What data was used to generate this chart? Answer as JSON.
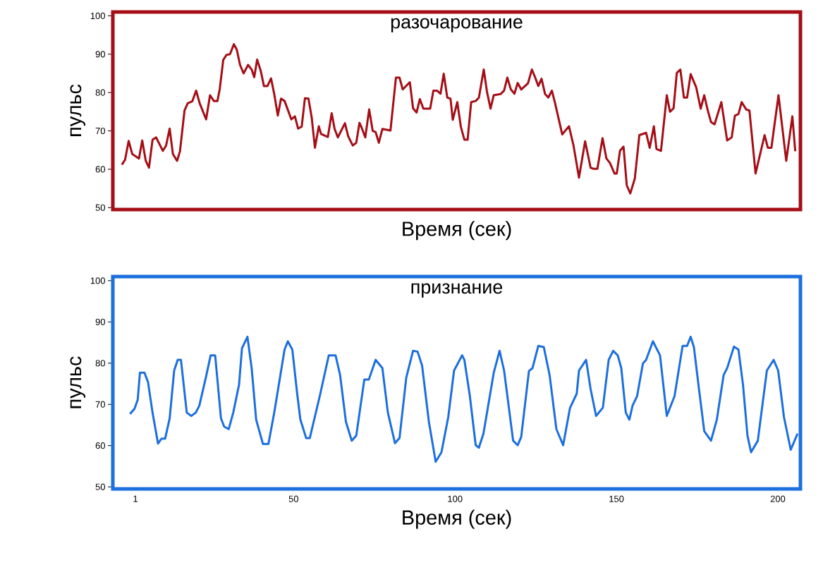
{
  "chart_data": [
    {
      "type": "line",
      "title": "разочарование",
      "xlabel": "Время (сек)",
      "ylabel": "пульс",
      "color": "#a50e16",
      "tick_labels": "y",
      "xlim": [
        -6,
        207
      ],
      "ylim": [
        49.5,
        101
      ],
      "yticks": [
        50,
        60,
        70,
        80,
        90,
        100
      ],
      "x": [
        -3.2,
        -2.2,
        -1.1,
        0,
        2.1,
        3.1,
        4.2,
        5.2,
        6.3,
        7.4,
        9.5,
        10.5,
        11.6,
        12.6,
        13.9,
        14.8,
        16.2,
        17.2,
        18.6,
        19.8,
        20.9,
        22.9,
        24.1,
        25.3,
        26.4,
        27.1,
        28.2,
        29.2,
        30.3,
        31.5,
        32.4,
        33.4,
        34.5,
        35.9,
        37.0,
        37.8,
        38.7,
        39.8,
        40.8,
        41.9,
        43.0,
        44.0,
        45.1,
        46.1,
        47.2,
        49.3,
        50.4,
        51.4,
        52.5,
        53.5,
        54.6,
        55.6,
        56.6,
        57.8,
        58.5,
        60.6,
        61.8,
        62.7,
        63.7,
        65.9,
        66.9,
        68.3,
        69.4,
        70.4,
        71.1,
        72.2,
        73.4,
        74.5,
        75.4,
        76.4,
        77.5,
        80.0,
        81.7,
        82.8,
        83.8,
        86.0,
        87.0,
        88.1,
        89.1,
        90.2,
        92.3,
        93.3,
        94.4,
        95.5,
        96.5,
        97.6,
        98.6,
        99.3,
        100.7,
        101.8,
        102.9,
        103.9,
        105.0,
        106.4,
        107.4,
        108.9,
        109.9,
        111.0,
        112.0,
        114.1,
        115.2,
        116.2,
        117.3,
        118.4,
        119.4,
        120.5,
        122.6,
        123.8,
        124.7,
        125.8,
        126.8,
        127.9,
        128.9,
        130.0,
        131.0,
        133.2,
        135.3,
        136.7,
        138.4,
        140.3,
        142.0,
        143.0,
        144.1,
        145.7,
        146.9,
        148.0,
        149.4,
        150.1,
        151.1,
        152.2,
        153.2,
        154.3,
        155.7,
        157.1,
        159.2,
        160.3,
        161.6,
        162.4,
        163.8,
        165.6,
        166.6,
        167.7,
        168.7,
        169.8,
        170.9,
        171.9,
        173.0,
        174.7,
        176.1,
        177.2,
        178.3,
        179.3,
        180.4,
        182.5,
        184.3,
        185.7,
        186.7,
        187.8,
        188.8,
        190.2,
        191.2,
        193.1,
        195.9,
        196.9,
        198.0,
        200.2,
        202.6,
        204.5,
        205.4
      ],
      "values": [
        61.2,
        62.5,
        67.4,
        64.0,
        62.8,
        67.5,
        62.2,
        60.4,
        67.7,
        68.3,
        64.8,
        66.2,
        70.6,
        64.0,
        62.2,
        64.7,
        75.3,
        77.2,
        77.7,
        80.5,
        77.2,
        73.0,
        79.3,
        77.8,
        77.8,
        80.8,
        88.5,
        89.8,
        90.0,
        92.6,
        91.2,
        87.2,
        85.0,
        87.2,
        86.0,
        84.0,
        88.6,
        85.7,
        81.7,
        81.7,
        83.7,
        79.6,
        74.0,
        78.4,
        77.8,
        73.0,
        73.8,
        70.6,
        71.1,
        78.5,
        78.4,
        73.5,
        65.6,
        71.2,
        69.2,
        68.4,
        74.6,
        70.5,
        68.3,
        72.0,
        68.6,
        66.2,
        66.9,
        72.1,
        70.8,
        68.3,
        75.6,
        70.0,
        69.7,
        66.9,
        70.5,
        70.1,
        83.9,
        83.9,
        80.8,
        82.7,
        75.9,
        74.8,
        78.3,
        75.8,
        75.8,
        80.5,
        80.5,
        79.7,
        84.9,
        78.7,
        78.4,
        72.9,
        77.5,
        71.1,
        67.7,
        67.7,
        77.5,
        77.8,
        78.7,
        86.0,
        80.2,
        75.8,
        79.3,
        79.6,
        80.5,
        83.9,
        80.8,
        79.7,
        82.5,
        80.8,
        82.4,
        86.0,
        84.2,
        81.7,
        83.6,
        79.6,
        78.7,
        80.5,
        77.2,
        69.1,
        71.2,
        66.2,
        57.8,
        67.3,
        60.4,
        60.1,
        60.1,
        68.1,
        62.8,
        61.6,
        58.9,
        58.9,
        64.8,
        65.9,
        55.8,
        53.7,
        57.6,
        68.9,
        69.5,
        65.6,
        71.2,
        65.3,
        64.8,
        79.3,
        75.0,
        75.9,
        85.1,
        86.0,
        78.7,
        78.7,
        84.8,
        81.4,
        75.8,
        79.3,
        75.3,
        72.3,
        71.7,
        77.5,
        67.5,
        68.3,
        74.0,
        74.4,
        77.5,
        75.6,
        75.3,
        58.9,
        68.9,
        65.6,
        65.6,
        79.3,
        62.2,
        73.8,
        64.7
      ]
    },
    {
      "type": "line",
      "title": "признание",
      "xlabel": "Время (сек)",
      "ylabel": "пульс",
      "color": "#1c6fde",
      "xlim": [
        -6,
        207
      ],
      "ylim": [
        49.5,
        101
      ],
      "xticks": [
        1,
        50,
        100,
        150,
        200
      ],
      "yticks": [
        50,
        60,
        70,
        80,
        90,
        100
      ],
      "x": [
        -0.7,
        0.7,
        1.7,
        2.4,
        3.8,
        4.9,
        6.3,
        8.0,
        9.1,
        10.2,
        11.6,
        13.0,
        14.1,
        15.1,
        16.9,
        18.3,
        19.7,
        20.8,
        22.9,
        24.3,
        25.7,
        27.5,
        28.5,
        29.9,
        31.3,
        33.1,
        34.0,
        35.7,
        37.0,
        38.4,
        40.5,
        42.2,
        44.0,
        47.2,
        48.2,
        49.6,
        51.1,
        52.1,
        53.9,
        55.0,
        58.1,
        60.9,
        63.0,
        64.4,
        66.2,
        68.0,
        69.4,
        71.9,
        73.3,
        75.4,
        77.5,
        79.2,
        81.4,
        82.8,
        84.9,
        87.0,
        88.4,
        89.8,
        91.9,
        94.0,
        95.8,
        97.9,
        99.7,
        102.2,
        102.9,
        104.6,
        106.4,
        107.4,
        108.8,
        112.0,
        113.8,
        115.2,
        118.0,
        119.4,
        120.5,
        122.9,
        124.0,
        125.8,
        127.5,
        129.3,
        131.4,
        133.5,
        135.6,
        137.7,
        138.4,
        140.6,
        142.0,
        143.7,
        145.8,
        147.6,
        149.0,
        150.4,
        151.5,
        152.9,
        154.0,
        155.0,
        156.4,
        158.2,
        159.2,
        161.3,
        163.5,
        165.6,
        168.0,
        170.5,
        171.9,
        173.0,
        174.0,
        175.4,
        177.2,
        179.3,
        181.1,
        183.2,
        184.3,
        186.4,
        187.8,
        189.2,
        190.6,
        191.7,
        193.8,
        196.6,
        198.7,
        200.1,
        201.9,
        204.0,
        206.1
      ],
      "values": [
        67.7,
        68.9,
        71.1,
        77.7,
        77.7,
        75.4,
        68.0,
        60.5,
        61.7,
        61.7,
        66.6,
        78.2,
        80.8,
        80.8,
        68.0,
        67.2,
        68.0,
        69.7,
        76.8,
        81.9,
        81.9,
        66.6,
        64.6,
        64.0,
        68.0,
        74.8,
        83.6,
        86.4,
        78.8,
        66.3,
        60.4,
        60.4,
        68.0,
        83.3,
        85.3,
        83.3,
        72.6,
        66.3,
        61.8,
        61.8,
        72.0,
        81.9,
        81.9,
        77.1,
        65.8,
        61.2,
        62.4,
        76.0,
        76.0,
        80.8,
        78.8,
        68.0,
        60.6,
        61.8,
        76.5,
        83.0,
        82.8,
        79.4,
        65.8,
        56.1,
        58.4,
        66.9,
        78.2,
        81.9,
        80.8,
        72.0,
        60.1,
        59.5,
        62.9,
        77.7,
        83.0,
        78.2,
        61.2,
        60.1,
        62.1,
        78.1,
        78.8,
        84.2,
        83.9,
        77.1,
        64.0,
        60.1,
        69.1,
        72.6,
        78.2,
        80.8,
        73.7,
        67.2,
        69.2,
        80.8,
        83.0,
        81.9,
        78.8,
        68.0,
        66.3,
        69.7,
        72.0,
        79.9,
        80.8,
        85.3,
        81.9,
        67.2,
        72.0,
        84.2,
        84.2,
        86.4,
        83.9,
        74.8,
        63.5,
        61.2,
        66.3,
        77.1,
        78.8,
        84.0,
        83.3,
        74.8,
        62.4,
        58.4,
        61.2,
        78.2,
        80.8,
        78.2,
        66.9,
        59.0,
        62.9
      ]
    }
  ]
}
